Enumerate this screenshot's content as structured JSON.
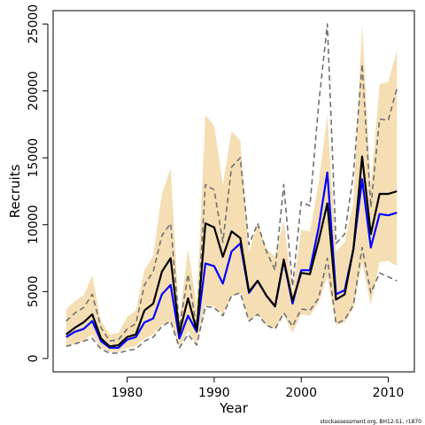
{
  "chart_data": {
    "type": "line",
    "xlabel": "Year",
    "ylabel": "Recruits",
    "xlim": [
      1971.5,
      2013
    ],
    "ylim": [
      -1000,
      26000
    ],
    "x_ticks": [
      1980,
      1990,
      2000,
      2010
    ],
    "y_ticks": [
      0,
      5000,
      10000,
      15000,
      20000,
      25000
    ],
    "x_tick_labels": [
      "1980",
      "1990",
      "2000",
      "2010"
    ],
    "y_tick_labels": [
      "0",
      "5000",
      "10000",
      "15000",
      "20000",
      "25000"
    ],
    "grid": false,
    "legend": "none",
    "credit": "stockassessment.org, BH12-S1, r1870",
    "colors": {
      "band": "#f5deb3",
      "black_line": "#000000",
      "blue_line": "#0000ff",
      "dashed_line": "#707070"
    },
    "x": [
      1973,
      1974,
      1975,
      1976,
      1977,
      1978,
      1979,
      1980,
      1981,
      1982,
      1983,
      1984,
      1985,
      1986,
      1987,
      1988,
      1989,
      1990,
      1991,
      1992,
      1993,
      1994,
      1995,
      1996,
      1997,
      1998,
      1999,
      2000,
      2001,
      2002,
      2003,
      2004,
      2005,
      2006,
      2007,
      2008,
      2009,
      2010,
      2011
    ],
    "band_upper": [
      3700,
      4300,
      4700,
      6200,
      2800,
      1800,
      1900,
      3100,
      3600,
      6600,
      7700,
      12300,
      14200,
      2900,
      8200,
      4000,
      18200,
      17400,
      13000,
      17000,
      16300,
      7900,
      10200,
      8200,
      7600,
      10300,
      5000,
      9600,
      9500,
      13100,
      18200,
      8000,
      8700,
      11700,
      25000,
      12800,
      20500,
      20700,
      23000
    ],
    "band_lower": [
      900,
      1100,
      1300,
      1800,
      800,
      500,
      500,
      800,
      900,
      1500,
      1800,
      2500,
      2800,
      800,
      2100,
      1000,
      4000,
      3900,
      3300,
      4600,
      4900,
      2800,
      3300,
      2500,
      2200,
      3300,
      1900,
      3300,
      3200,
      4200,
      6100,
      2500,
      2700,
      3800,
      7200,
      4000,
      7200,
      7300,
      6900
    ],
    "series": [
      {
        "values": [
          1800,
          2300,
          2700,
          3300,
          1500,
          900,
          1000,
          1600,
          1800,
          3600,
          4100,
          6500,
          7500,
          1900,
          4500,
          2100,
          10100,
          9800,
          7600,
          9500,
          9000,
          5000,
          5800,
          4700,
          3900,
          7400,
          4300,
          6400,
          6300,
          8800,
          11600,
          4400,
          4800,
          8200,
          15100,
          9300,
          12300,
          12300,
          12500
        ]
      },
      {
        "values": [
          1600,
          2000,
          2200,
          2800,
          1300,
          800,
          800,
          1400,
          1600,
          2700,
          3000,
          4800,
          5500,
          1500,
          3200,
          2000,
          7100,
          6900,
          5600,
          8000,
          8600,
          4900,
          5800,
          4700,
          3900,
          7300,
          4100,
          6600,
          6600,
          9800,
          13900,
          4800,
          5100,
          8200,
          13400,
          8300,
          10800,
          10700,
          10900
        ]
      },
      {
        "values": [
          2800,
          3400,
          3800,
          4800,
          2300,
          1300,
          1400,
          2200,
          2600,
          5500,
          6500,
          9200,
          10100,
          2300,
          6300,
          2200,
          13000,
          12600,
          8700,
          14300,
          15000,
          8500,
          10100,
          8000,
          6600,
          13000,
          5400,
          11700,
          11400,
          19000,
          25000,
          8600,
          9300,
          13800,
          22000,
          11300,
          17900,
          17800,
          20200
        ]
      },
      {
        "values": [
          900,
          1100,
          1300,
          1500,
          700,
          400,
          400,
          600,
          700,
          1300,
          1600,
          2400,
          2800,
          800,
          1800,
          1000,
          3900,
          3800,
          3200,
          4700,
          4900,
          2800,
          3300,
          2500,
          2200,
          3400,
          2400,
          3700,
          3600,
          4500,
          7500,
          2600,
          2900,
          4000,
          8300,
          4900,
          6400,
          6100,
          5800
        ]
      }
    ]
  }
}
